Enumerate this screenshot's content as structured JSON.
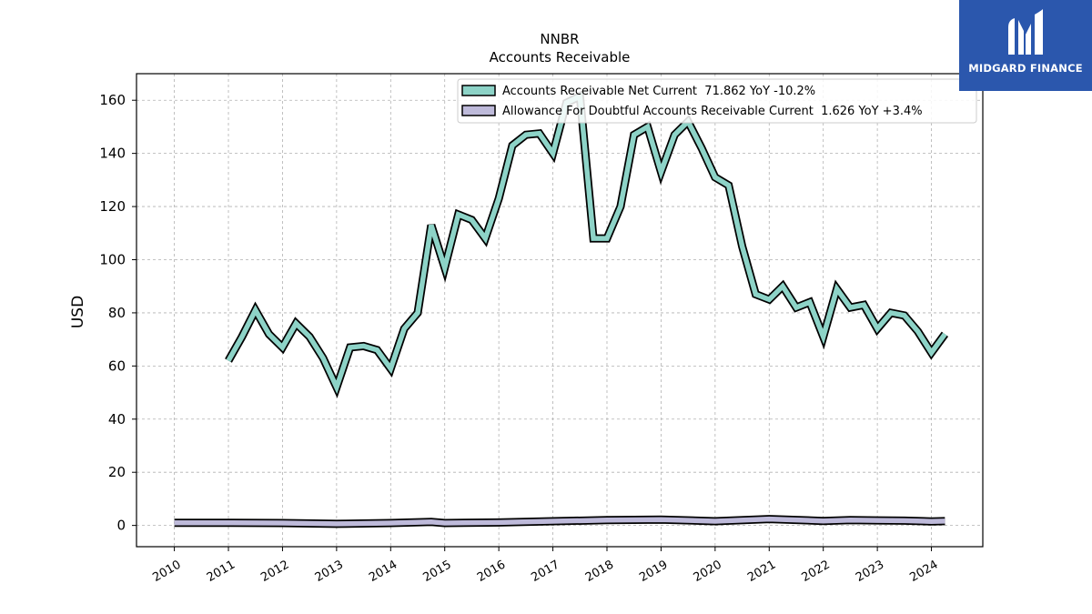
{
  "colors": {
    "series1": "#8dd3c7",
    "series2": "#bebada",
    "outline": "#000000",
    "grid": "#b0b0b0",
    "logo_bg": "#2b57ad"
  },
  "logo": {
    "text": "MIDGARD FINANCE"
  },
  "chart_data": {
    "type": "line",
    "title": "NNBR",
    "subtitle": "Accounts Receivable",
    "xlabel": "",
    "ylabel": "USD",
    "ylim": [
      -8,
      170
    ],
    "xlim": [
      2009.3,
      2024.95
    ],
    "yticks": [
      0,
      20,
      40,
      60,
      80,
      100,
      120,
      140,
      160
    ],
    "xticks": [
      "2010",
      "2011",
      "2012",
      "2013",
      "2014",
      "2015",
      "2016",
      "2017",
      "2018",
      "2019",
      "2020",
      "2021",
      "2022",
      "2023",
      "2024"
    ],
    "grid": true,
    "legend_position": "top-right",
    "series": [
      {
        "name": "Accounts Receivable Net Current  71.862 YoY -10.2%",
        "color": "#8dd3c7",
        "points": [
          [
            "2011-01-01",
            62
          ],
          [
            "2011-04-01",
            71
          ],
          [
            "2011-07-01",
            81
          ],
          [
            "2011-10-01",
            72
          ],
          [
            "2012-01-01",
            67
          ],
          [
            "2012-04-01",
            76
          ],
          [
            "2012-07-01",
            71
          ],
          [
            "2012-10-01",
            63
          ],
          [
            "2013-01-01",
            52
          ],
          [
            "2013-04-01",
            67
          ],
          [
            "2013-07-01",
            67.5
          ],
          [
            "2013-10-01",
            66
          ],
          [
            "2014-01-01",
            59
          ],
          [
            "2014-04-01",
            74
          ],
          [
            "2014-07-01",
            80
          ],
          [
            "2014-10-01",
            113
          ],
          [
            "2015-01-01",
            97
          ],
          [
            "2015-04-01",
            117
          ],
          [
            "2015-07-01",
            115
          ],
          [
            "2015-10-01",
            108
          ],
          [
            "2016-01-01",
            123
          ],
          [
            "2016-04-01",
            143
          ],
          [
            "2016-07-01",
            147
          ],
          [
            "2016-10-01",
            147.5
          ],
          [
            "2017-01-01",
            140
          ],
          [
            "2017-04-01",
            159
          ],
          [
            "2017-07-01",
            161.5
          ],
          [
            "2017-10-01",
            108
          ],
          [
            "2018-01-01",
            108
          ],
          [
            "2018-04-01",
            120
          ],
          [
            "2018-07-01",
            147
          ],
          [
            "2018-10-01",
            150
          ],
          [
            "2019-01-01",
            133
          ],
          [
            "2019-04-01",
            147
          ],
          [
            "2019-07-01",
            152
          ],
          [
            "2019-10-01",
            142
          ],
          [
            "2020-01-01",
            131
          ],
          [
            "2020-04-01",
            128
          ],
          [
            "2020-07-01",
            105
          ],
          [
            "2020-10-01",
            87
          ],
          [
            "2021-01-01",
            85
          ],
          [
            "2021-04-01",
            90
          ],
          [
            "2021-07-01",
            82
          ],
          [
            "2021-10-01",
            84
          ],
          [
            "2022-01-01",
            71
          ],
          [
            "2022-04-01",
            89
          ],
          [
            "2022-07-01",
            82
          ],
          [
            "2022-10-01",
            83
          ],
          [
            "2023-01-01",
            74
          ],
          [
            "2023-04-01",
            80
          ],
          [
            "2023-07-01",
            79
          ],
          [
            "2023-10-01",
            73
          ],
          [
            "2024-01-01",
            65
          ],
          [
            "2024-04-01",
            72
          ]
        ]
      },
      {
        "name": "Allowance For Doubtful Accounts Receivable Current  1.626 YoY +3.4%",
        "color": "#bebada",
        "points": [
          [
            "2010-01-01",
            1.0
          ],
          [
            "2011-01-01",
            1.0
          ],
          [
            "2012-01-01",
            0.9
          ],
          [
            "2013-01-01",
            0.6
          ],
          [
            "2014-01-01",
            0.9
          ],
          [
            "2014-10-01",
            1.3
          ],
          [
            "2015-01-01",
            0.9
          ],
          [
            "2016-01-01",
            1.1
          ],
          [
            "2017-01-01",
            1.6
          ],
          [
            "2018-01-01",
            2.0
          ],
          [
            "2019-01-01",
            2.2
          ],
          [
            "2020-01-01",
            1.6
          ],
          [
            "2021-01-01",
            2.4
          ],
          [
            "2022-01-01",
            1.7
          ],
          [
            "2022-07-01",
            2.0
          ],
          [
            "2023-01-01",
            1.9
          ],
          [
            "2023-07-01",
            1.8
          ],
          [
            "2024-01-01",
            1.5
          ],
          [
            "2024-04-01",
            1.626
          ]
        ]
      }
    ]
  }
}
